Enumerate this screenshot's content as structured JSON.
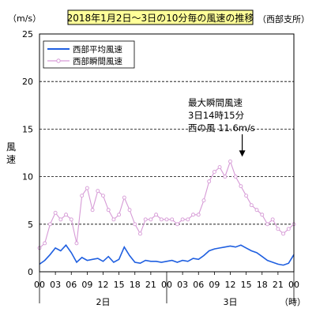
{
  "chart_data": {
    "type": "line",
    "title": "2018年1月2日～3日の10分毎の風速の推移",
    "subtitle": "（西部支所）",
    "unit_label": "（m/s）",
    "ylabel": "風速",
    "xlabel_unit": "（時）",
    "ylim": [
      0,
      25
    ],
    "y_ticks": [
      0,
      5,
      10,
      15,
      20,
      25
    ],
    "y_gridlines": [
      5,
      10,
      15,
      20
    ],
    "grid": "dashed horizontal",
    "x_tick_labels": [
      "00",
      "03",
      "06",
      "09",
      "12",
      "15",
      "18",
      "21",
      "00",
      "03",
      "06",
      "09",
      "12",
      "15",
      "18",
      "21",
      "00"
    ],
    "day_labels": [
      {
        "label": "2日",
        "hour": 12
      },
      {
        "label": "3日",
        "hour": 36
      }
    ],
    "legend_position": "top-left",
    "series": [
      {
        "name": "西部平均風速",
        "color": "#1f5fe0",
        "x_hours": [
          0,
          1,
          2,
          3,
          4,
          5,
          6,
          7,
          8,
          9,
          10,
          11,
          12,
          13,
          14,
          15,
          16,
          17,
          18,
          19,
          20,
          21,
          22,
          23,
          24,
          25,
          26,
          27,
          28,
          29,
          30,
          31,
          32,
          33,
          34,
          35,
          36,
          37,
          38,
          39,
          40,
          41,
          42,
          43,
          44,
          45,
          46,
          47,
          48
        ],
        "values": [
          0.8,
          1.2,
          1.8,
          2.5,
          2.2,
          2.8,
          2.0,
          1.0,
          1.5,
          1.2,
          1.3,
          1.4,
          1.1,
          1.6,
          1.0,
          1.3,
          2.6,
          1.7,
          1.0,
          0.9,
          1.2,
          1.1,
          1.1,
          1.0,
          1.1,
          1.2,
          1.0,
          1.2,
          1.1,
          1.4,
          1.3,
          1.7,
          2.2,
          2.4,
          2.5,
          2.6,
          2.7,
          2.6,
          2.8,
          2.5,
          2.2,
          2.0,
          1.6,
          1.2,
          1.0,
          0.8,
          0.7,
          0.9,
          1.8
        ]
      },
      {
        "name": "西部瞬間風速",
        "color": "#d69ad6",
        "x_hours": [
          0,
          1,
          2,
          3,
          4,
          5,
          6,
          7,
          8,
          9,
          10,
          11,
          12,
          13,
          14,
          15,
          16,
          17,
          18,
          19,
          20,
          21,
          22,
          23,
          24,
          25,
          26,
          27,
          28,
          29,
          30,
          31,
          32,
          33,
          34,
          35,
          36,
          37,
          38,
          39,
          40,
          41,
          42,
          43,
          44,
          45,
          46,
          47,
          48
        ],
        "values": [
          2.5,
          3.0,
          5.0,
          6.2,
          5.5,
          6.0,
          5.5,
          3.0,
          8.0,
          8.8,
          6.5,
          8.5,
          8.0,
          6.5,
          5.5,
          6.0,
          7.8,
          6.5,
          5.0,
          4.0,
          5.5,
          5.5,
          6.0,
          5.5,
          5.5,
          5.5,
          5.0,
          5.5,
          5.5,
          6.0,
          6.0,
          7.5,
          9.5,
          10.5,
          11.0,
          10.0,
          11.6,
          10.0,
          9.0,
          8.0,
          7.0,
          6.5,
          6.0,
          5.0,
          5.5,
          4.5,
          4.0,
          4.5,
          5.0
        ]
      }
    ],
    "annotation": {
      "lines": [
        "最大瞬間風速",
        "3日14時15分",
        "西の風 11.6m/s"
      ],
      "point": {
        "x_hours": 38.25,
        "value": 11.6
      }
    }
  }
}
